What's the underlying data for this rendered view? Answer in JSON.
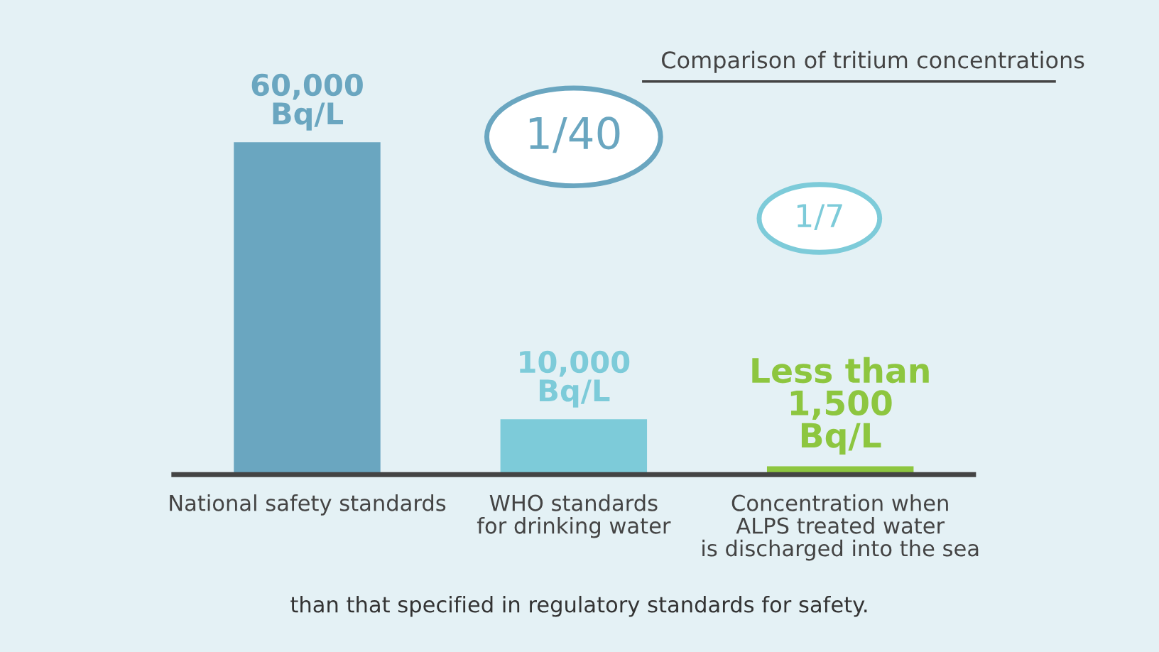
{
  "chart_data": {
    "type": "bar",
    "title": "Comparison of tritium concentrations",
    "categories": [
      "National safety standards",
      "WHO standards\nfor drinking water",
      "Concentration when\nALPS treated water\nis discharged into the sea"
    ],
    "values": [
      60000,
      10000,
      1500
    ],
    "colors": [
      "#6aa6c0",
      "#7dcbd9",
      "#8dc63f"
    ],
    "value_labels": [
      "60,000\nBq/L",
      "10,000\nBq/L",
      "Less than\n1,500\nBq/L"
    ],
    "annotations": [
      "1/40",
      "1/7",
      "than that specified in regulatory standards for safety."
    ],
    "grid": false,
    "legend": false
  }
}
